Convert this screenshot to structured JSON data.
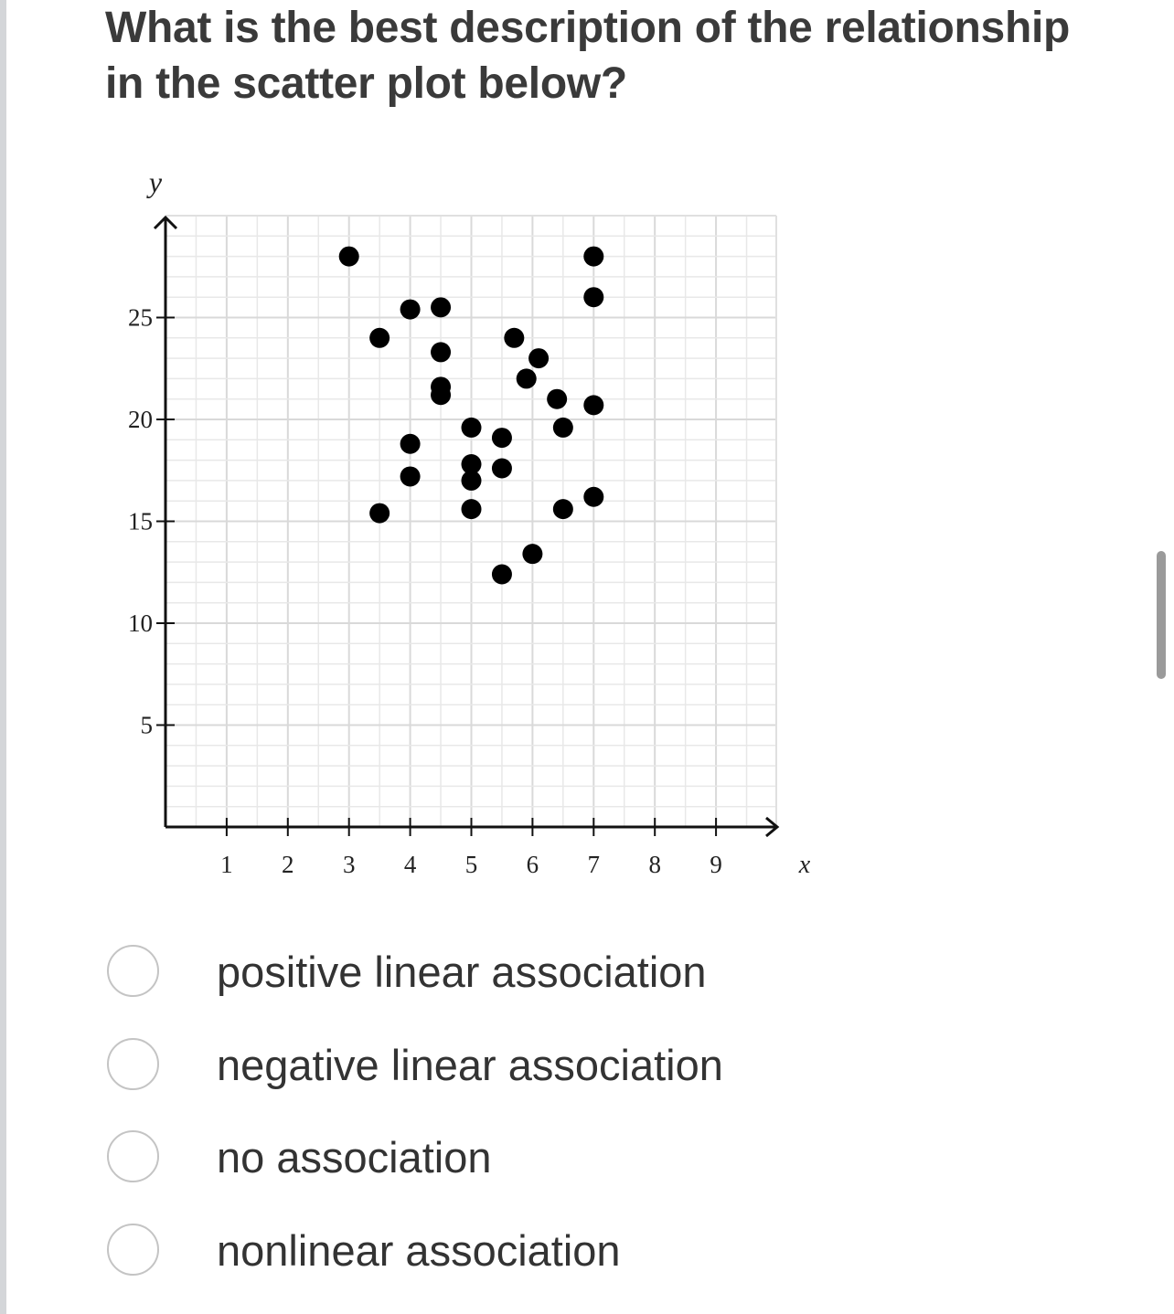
{
  "question": {
    "text": "What is the best description of the relationship in the scatter plot below?"
  },
  "chart_data": {
    "type": "scatter",
    "xlabel": "x",
    "ylabel": "y",
    "x_ticks": [
      1,
      2,
      3,
      4,
      5,
      6,
      7,
      8,
      9
    ],
    "y_ticks": [
      5,
      10,
      15,
      20,
      25
    ],
    "xlim": [
      0,
      10
    ],
    "ylim": [
      0,
      30
    ],
    "grid": true,
    "points": [
      {
        "x": 3,
        "y": 28
      },
      {
        "x": 3.5,
        "y": 24
      },
      {
        "x": 3.5,
        "y": 15.4
      },
      {
        "x": 4,
        "y": 25.4
      },
      {
        "x": 4,
        "y": 18.8
      },
      {
        "x": 4,
        "y": 17.2
      },
      {
        "x": 4.5,
        "y": 25.5
      },
      {
        "x": 4.5,
        "y": 23.3
      },
      {
        "x": 4.5,
        "y": 21.6
      },
      {
        "x": 4.5,
        "y": 21.2
      },
      {
        "x": 5,
        "y": 19.6
      },
      {
        "x": 5,
        "y": 17.8
      },
      {
        "x": 5,
        "y": 17
      },
      {
        "x": 5,
        "y": 15.6
      },
      {
        "x": 5.5,
        "y": 19.1
      },
      {
        "x": 5.5,
        "y": 17.6
      },
      {
        "x": 5.5,
        "y": 12.4
      },
      {
        "x": 5.7,
        "y": 24
      },
      {
        "x": 5.9,
        "y": 22
      },
      {
        "x": 6,
        "y": 13.4
      },
      {
        "x": 6.1,
        "y": 23
      },
      {
        "x": 6.4,
        "y": 21
      },
      {
        "x": 6.5,
        "y": 19.6
      },
      {
        "x": 6.5,
        "y": 15.6
      },
      {
        "x": 7,
        "y": 28
      },
      {
        "x": 7,
        "y": 26
      },
      {
        "x": 7,
        "y": 20.7
      },
      {
        "x": 7,
        "y": 16.2
      }
    ]
  },
  "choices": [
    {
      "label": "positive linear association"
    },
    {
      "label": "negative linear association"
    },
    {
      "label": "no association"
    },
    {
      "label": "nonlinear association"
    }
  ]
}
